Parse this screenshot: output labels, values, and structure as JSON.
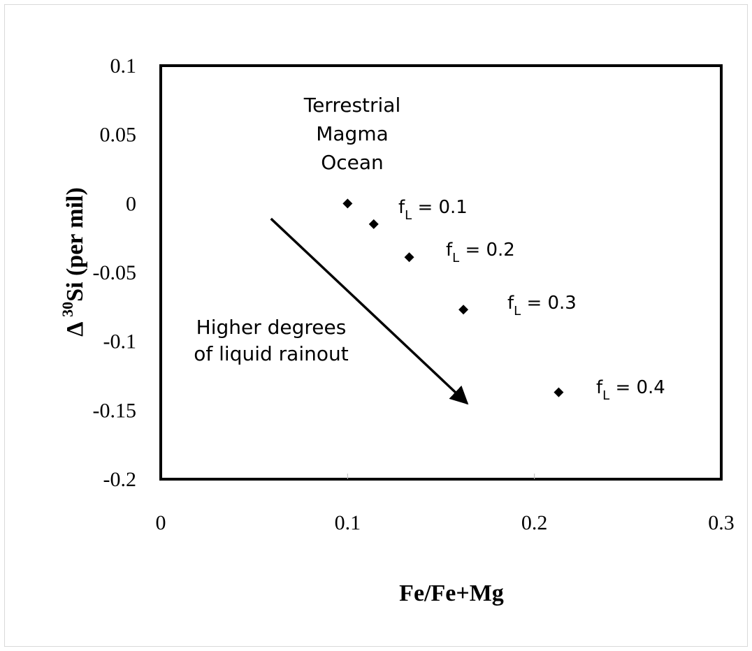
{
  "chart_data": {
    "type": "scatter",
    "title": "",
    "xlabel": "Fe/Fe+Mg",
    "ylabel_prefix": "Δ",
    "ylabel_sup": "30",
    "ylabel_main": "Si (per mil)",
    "xlim": [
      0,
      0.3
    ],
    "ylim": [
      -0.2,
      0.1
    ],
    "x_ticks": [
      "0",
      "0.1",
      "0.2",
      "0.3"
    ],
    "y_ticks": [
      "0.1",
      "0.05",
      "0",
      "-0.05",
      "-0.1",
      "-0.15",
      "-0.2"
    ],
    "grid": false,
    "marker": "diamond",
    "series": [
      {
        "x": [
          0.1,
          0.114,
          0.133,
          0.162,
          0.213
        ],
        "y": [
          0.0,
          -0.015,
          -0.039,
          -0.077,
          -0.137
        ]
      }
    ],
    "point_labels": [
      {
        "index": 1,
        "base": "f",
        "sub": "L",
        "rest": " = 0.1"
      },
      {
        "index": 2,
        "base": "f",
        "sub": "L",
        "rest": " = 0.2"
      },
      {
        "index": 3,
        "base": "f",
        "sub": "L",
        "rest": " = 0.3"
      },
      {
        "index": 4,
        "base": "f",
        "sub": "L",
        "rest": " = 0.4"
      }
    ],
    "annotations": [
      {
        "lines": [
          "Terrestrial",
          "Magma",
          "Ocean"
        ]
      },
      {
        "lines": [
          "Higher degrees",
          "of liquid rainout"
        ]
      }
    ],
    "arrow": {
      "from": [
        0.059,
        -0.011
      ],
      "to": [
        0.164,
        -0.145
      ]
    }
  }
}
